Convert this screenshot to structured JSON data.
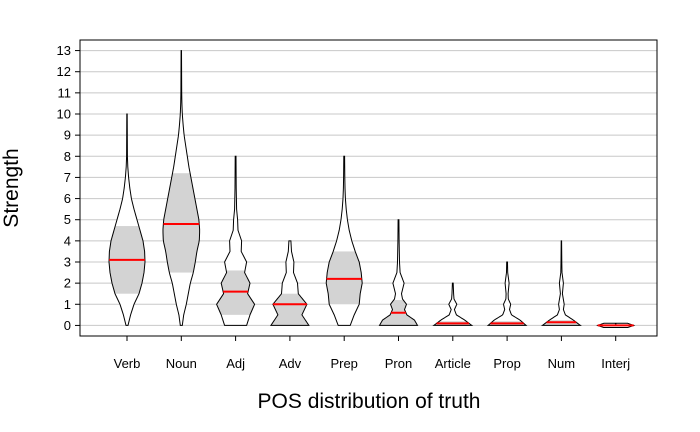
{
  "chart_data": {
    "type": "violin",
    "title": "",
    "xlabel": "POS distribution of truth",
    "ylabel": "Strength",
    "ylim": [
      -0.5,
      13.5
    ],
    "yticks": [
      0,
      1,
      2,
      3,
      4,
      5,
      6,
      7,
      8,
      9,
      10,
      11,
      12,
      13
    ],
    "grid": "horizontal",
    "legend": "none",
    "colors": {
      "box": "#d3d3d3",
      "median": "#ff0000",
      "outline": "#000000",
      "grid": "#c8c8c8"
    },
    "categories": [
      "Verb",
      "Noun",
      "Adj",
      "Adv",
      "Prep",
      "Pron",
      "Article",
      "Prop",
      "Num",
      "Interj"
    ],
    "series": [
      {
        "category": "Verb",
        "min": 0,
        "q1": 1.5,
        "median": 3.1,
        "q3": 4.7,
        "max": 10,
        "profile": [
          [
            0,
            0.05
          ],
          [
            0.5,
            0.18
          ],
          [
            1,
            0.35
          ],
          [
            1.5,
            0.6
          ],
          [
            2,
            0.75
          ],
          [
            2.5,
            0.85
          ],
          [
            3,
            0.9
          ],
          [
            3.5,
            0.88
          ],
          [
            4,
            0.8
          ],
          [
            4.5,
            0.65
          ],
          [
            5,
            0.5
          ],
          [
            5.5,
            0.35
          ],
          [
            6,
            0.22
          ],
          [
            6.5,
            0.14
          ],
          [
            7,
            0.08
          ],
          [
            7.5,
            0.04
          ],
          [
            8,
            0.02
          ],
          [
            10,
            0.01
          ]
        ]
      },
      {
        "category": "Noun",
        "min": 0,
        "q1": 2.5,
        "median": 4.8,
        "q3": 7.2,
        "max": 13,
        "profile": [
          [
            0,
            0.05
          ],
          [
            0.5,
            0.12
          ],
          [
            1,
            0.25
          ],
          [
            1.5,
            0.35
          ],
          [
            2,
            0.45
          ],
          [
            2.5,
            0.6
          ],
          [
            3,
            0.7
          ],
          [
            3.5,
            0.78
          ],
          [
            4,
            0.9
          ],
          [
            4.5,
            0.92
          ],
          [
            5,
            0.88
          ],
          [
            5.5,
            0.78
          ],
          [
            6,
            0.68
          ],
          [
            6.5,
            0.58
          ],
          [
            7,
            0.48
          ],
          [
            7.5,
            0.38
          ],
          [
            8,
            0.3
          ],
          [
            8.5,
            0.22
          ],
          [
            9,
            0.14
          ],
          [
            9.5,
            0.09
          ],
          [
            10,
            0.05
          ],
          [
            10.5,
            0.03
          ],
          [
            11,
            0.02
          ],
          [
            13,
            0.01
          ]
        ]
      },
      {
        "category": "Adj",
        "min": 0,
        "q1": 0.5,
        "median": 1.6,
        "q3": 2.6,
        "max": 8,
        "profile": [
          [
            0,
            0.55
          ],
          [
            0.5,
            0.72
          ],
          [
            1,
            0.95
          ],
          [
            1.5,
            0.6
          ],
          [
            2,
            0.72
          ],
          [
            2.5,
            0.45
          ],
          [
            3,
            0.55
          ],
          [
            3.5,
            0.28
          ],
          [
            4,
            0.3
          ],
          [
            4.5,
            0.12
          ],
          [
            5,
            0.1
          ],
          [
            5.5,
            0.05
          ],
          [
            6,
            0.04
          ],
          [
            6.5,
            0.03
          ],
          [
            8,
            0.02
          ]
        ]
      },
      {
        "category": "Adv",
        "min": 0,
        "q1": 0,
        "median": 1.0,
        "q3": 1.5,
        "max": 4,
        "profile": [
          [
            0,
            0.95
          ],
          [
            0.5,
            0.6
          ],
          [
            1,
            0.85
          ],
          [
            1.5,
            0.42
          ],
          [
            2,
            0.38
          ],
          [
            2.5,
            0.18
          ],
          [
            3,
            0.2
          ],
          [
            3.5,
            0.08
          ],
          [
            4,
            0.05
          ]
        ]
      },
      {
        "category": "Prep",
        "min": 0,
        "q1": 1.0,
        "median": 2.2,
        "q3": 3.5,
        "max": 8,
        "profile": [
          [
            0,
            0.3
          ],
          [
            0.5,
            0.5
          ],
          [
            1,
            0.75
          ],
          [
            1.5,
            0.8
          ],
          [
            2,
            0.9
          ],
          [
            2.5,
            0.85
          ],
          [
            3,
            0.75
          ],
          [
            3.5,
            0.55
          ],
          [
            4,
            0.38
          ],
          [
            4.5,
            0.25
          ],
          [
            5,
            0.16
          ],
          [
            5.5,
            0.1
          ],
          [
            6,
            0.06
          ],
          [
            6.5,
            0.04
          ],
          [
            7,
            0.03
          ],
          [
            8,
            0.02
          ]
        ]
      },
      {
        "category": "Pron",
        "min": 0,
        "q1": 0,
        "median": 0.6,
        "q3": 1.2,
        "max": 5,
        "profile": [
          [
            0,
            0.95
          ],
          [
            0.25,
            0.8
          ],
          [
            0.5,
            0.42
          ],
          [
            0.75,
            0.3
          ],
          [
            1,
            0.4
          ],
          [
            1.25,
            0.2
          ],
          [
            1.5,
            0.15
          ],
          [
            2,
            0.28
          ],
          [
            2.5,
            0.08
          ],
          [
            3,
            0.05
          ],
          [
            4,
            0.03
          ],
          [
            5,
            0.02
          ]
        ]
      },
      {
        "category": "Article",
        "min": 0,
        "q1": 0,
        "median": 0.1,
        "q3": 0.2,
        "max": 2,
        "profile": [
          [
            0,
            0.95
          ],
          [
            0.25,
            0.6
          ],
          [
            0.5,
            0.18
          ],
          [
            0.75,
            0.08
          ],
          [
            1,
            0.2
          ],
          [
            1.25,
            0.06
          ],
          [
            1.5,
            0.04
          ],
          [
            2,
            0.02
          ]
        ]
      },
      {
        "category": "Prop",
        "min": 0,
        "q1": 0,
        "median": 0.1,
        "q3": 0.2,
        "max": 3,
        "profile": [
          [
            0,
            0.95
          ],
          [
            0.25,
            0.65
          ],
          [
            0.5,
            0.22
          ],
          [
            0.75,
            0.12
          ],
          [
            1,
            0.18
          ],
          [
            1.25,
            0.06
          ],
          [
            1.5,
            0.05
          ],
          [
            2,
            0.1
          ],
          [
            2.5,
            0.03
          ],
          [
            3,
            0.02
          ]
        ]
      },
      {
        "category": "Num",
        "min": 0,
        "q1": 0,
        "median": 0.15,
        "q3": 0.25,
        "max": 4,
        "profile": [
          [
            0,
            0.95
          ],
          [
            0.25,
            0.6
          ],
          [
            0.5,
            0.2
          ],
          [
            0.75,
            0.1
          ],
          [
            1,
            0.14
          ],
          [
            1.5,
            0.05
          ],
          [
            2,
            0.1
          ],
          [
            2.5,
            0.03
          ],
          [
            3,
            0.02
          ],
          [
            4,
            0.01
          ]
        ]
      },
      {
        "category": "Interj",
        "min": 0,
        "q1": 0,
        "median": 0,
        "q3": 0,
        "max": 0.05,
        "profile": [
          [
            -0.1,
            0.6
          ],
          [
            0,
            0.9
          ],
          [
            0.1,
            0.6
          ]
        ]
      }
    ]
  }
}
